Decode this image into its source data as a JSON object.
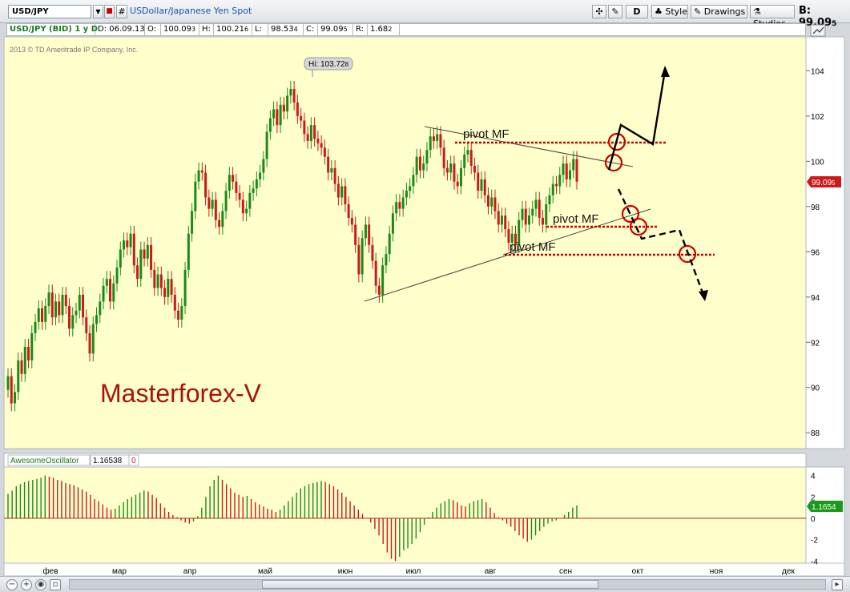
{
  "toolbar": {
    "symbol": "USD/JPY",
    "hash_label": "#",
    "description": "USDollar/Japanese Yen Spot",
    "d_label": "D",
    "style_label": "Style",
    "drawings_label": "Drawings",
    "studies_label": "Studies",
    "bid_label": "B: 99.09",
    "bid_small": "5"
  },
  "infobar": {
    "symbol": "USD/JPY (BID) 1 y D",
    "date": "D: 06.09.13",
    "open_label": "O:",
    "open": "100.09",
    "open_small": "3",
    "high_label": "H:",
    "high": "100.21",
    "high_small": "6",
    "low_label": "L:",
    "low": "98.53",
    "low_small": "4",
    "close_label": "C:",
    "close": "99.09",
    "close_small": "5",
    "range_label": "R:",
    "range": "1.68",
    "range_small": "2"
  },
  "copyright": "2013 © TD Ameritrade IP Company, Inc.",
  "watermark": "Masterforex-V",
  "hi_label": "Hi: 103.72",
  "hi_small": "8",
  "last_price_label": "99.09",
  "last_price_small": "5",
  "annotations": [
    "pivot MF",
    "pivot MF",
    "pivot MF"
  ],
  "oscillator": {
    "name": "AwesomeOscillator",
    "value": "1.16538",
    "extra": "0",
    "last_label": "1.1654"
  },
  "colors": {
    "background": "#ffffcc",
    "bull": "#1a8a1a",
    "bear": "#cc1a1a",
    "pivot_line": "#cc0000",
    "watermark": "#aa1010",
    "price_tag": "#cc1a1a",
    "osc_tag": "#1a9a1a"
  },
  "chart_data": [
    {
      "type": "candlestick",
      "title": "USD/JPY (BID) 1 y D",
      "x_tick_labels": [
        "фев",
        "мар",
        "апр",
        "май",
        "июн",
        "июл",
        "авг",
        "сен",
        "окт",
        "ноя",
        "дек"
      ],
      "y_ticks": [
        88,
        90,
        92,
        94,
        96,
        98,
        100,
        102,
        104
      ],
      "ylim": [
        87.3,
        105.5
      ],
      "last_price": 99.095,
      "high_marker": 103.728,
      "closes": [
        90.5,
        89.3,
        89.8,
        91.2,
        90.6,
        91.8,
        91.2,
        92.4,
        92.9,
        93.5,
        92.9,
        93.6,
        94.2,
        93.1,
        93.8,
        93.2,
        94.1,
        93.6,
        92.6,
        93.2,
        93.4,
        94.1,
        93.1,
        92.4,
        91.5,
        92.8,
        93.2,
        93.8,
        94.5,
        94.8,
        93.8,
        94.6,
        95.3,
        96.1,
        96.5,
        96.2,
        96.8,
        95.4,
        94.8,
        96.1,
        95.7,
        96.3,
        95.2,
        94.4,
        95.0,
        94.4,
        94.0,
        94.8,
        94.1,
        93.4,
        93.0,
        93.6,
        95.2,
        96.8,
        97.8,
        99.1,
        99.6,
        99.5,
        98.4,
        97.9,
        98.3,
        97.4,
        97.1,
        97.8,
        98.7,
        99.4,
        99.1,
        98.6,
        98.3,
        97.7,
        97.9,
        98.6,
        98.8,
        99.2,
        99.5,
        100.1,
        101.3,
        101.9,
        102.3,
        101.6,
        102.5,
        102.2,
        102.9,
        103.2,
        102.6,
        102.0,
        101.8,
        101.2,
        100.9,
        101.6,
        101.0,
        100.8,
        100.6,
        100.2,
        99.5,
        99.7,
        99.0,
        98.4,
        98.9,
        98.1,
        97.5,
        97.2,
        96.3,
        95.0,
        96.6,
        97.2,
        96.3,
        95.6,
        94.5,
        94.1,
        95.4,
        95.9,
        96.8,
        97.7,
        98.2,
        97.9,
        98.4,
        98.7,
        98.9,
        99.4,
        100.2,
        99.6,
        99.9,
        100.5,
        101.1,
        100.9,
        101.2,
        100.6,
        99.7,
        99.5,
        99.9,
        99.1,
        98.9,
        99.7,
        100.3,
        100.5,
        99.8,
        99.5,
        98.7,
        99.2,
        98.5,
        98.0,
        98.4,
        97.8,
        97.2,
        97.6,
        97.0,
        96.4,
        96.8,
        96.3,
        97.4,
        97.9,
        97.2,
        97.6,
        97.9,
        98.3,
        97.5,
        97.2,
        98.1,
        98.5,
        99.0,
        98.9,
        99.4,
        99.9,
        99.2,
        99.6,
        100.1,
        99.1
      ]
    },
    {
      "type": "bar",
      "title": "AwesomeOscillator",
      "y_ticks": [
        -4,
        -2,
        0,
        2,
        4
      ],
      "ylim": [
        -4.2,
        4.8
      ],
      "last_value": 1.16538,
      "values": [
        2.3,
        2.6,
        3.0,
        3.2,
        3.4,
        3.5,
        3.6,
        3.7,
        3.8,
        4.0,
        3.9,
        3.8,
        3.6,
        3.5,
        3.3,
        3.2,
        3.1,
        2.9,
        2.7,
        2.5,
        2.2,
        1.8,
        1.6,
        1.3,
        1.0,
        0.8,
        0.9,
        1.2,
        1.5,
        1.8,
        2.0,
        2.2,
        2.4,
        2.6,
        2.5,
        2.2,
        1.9,
        1.4,
        1.0,
        0.6,
        0.3,
        0.1,
        -0.2,
        -0.4,
        -0.5,
        -0.3,
        0.2,
        1.0,
        2.0,
        3.0,
        3.6,
        4.0,
        3.6,
        3.2,
        2.8,
        2.4,
        2.2,
        2.0,
        2.1,
        1.8,
        1.5,
        1.3,
        1.1,
        0.9,
        0.8,
        0.6,
        0.8,
        1.2,
        1.6,
        2.0,
        2.4,
        2.8,
        3.0,
        3.2,
        3.3,
        3.4,
        3.5,
        3.4,
        3.2,
        3.0,
        2.7,
        2.4,
        2.0,
        1.6,
        1.2,
        0.8,
        0.4,
        0.0,
        -0.4,
        -1.0,
        -1.6,
        -2.4,
        -3.2,
        -3.8,
        -4.0,
        -3.6,
        -3.0,
        -2.8,
        -2.4,
        -1.9,
        -1.3,
        -0.6,
        0.1,
        0.6,
        1.0,
        1.4,
        1.6,
        1.8,
        1.7,
        1.5,
        1.2,
        1.1,
        1.4,
        1.6,
        1.7,
        1.8,
        1.5,
        1.0,
        0.5,
        0.1,
        -0.2,
        -0.5,
        -0.8,
        -1.2,
        -1.6,
        -1.9,
        -2.2,
        -2.0,
        -1.6,
        -1.2,
        -0.8,
        -0.5,
        -0.3,
        -0.2,
        0.0,
        0.3,
        0.6,
        1.0,
        1.2
      ]
    }
  ]
}
